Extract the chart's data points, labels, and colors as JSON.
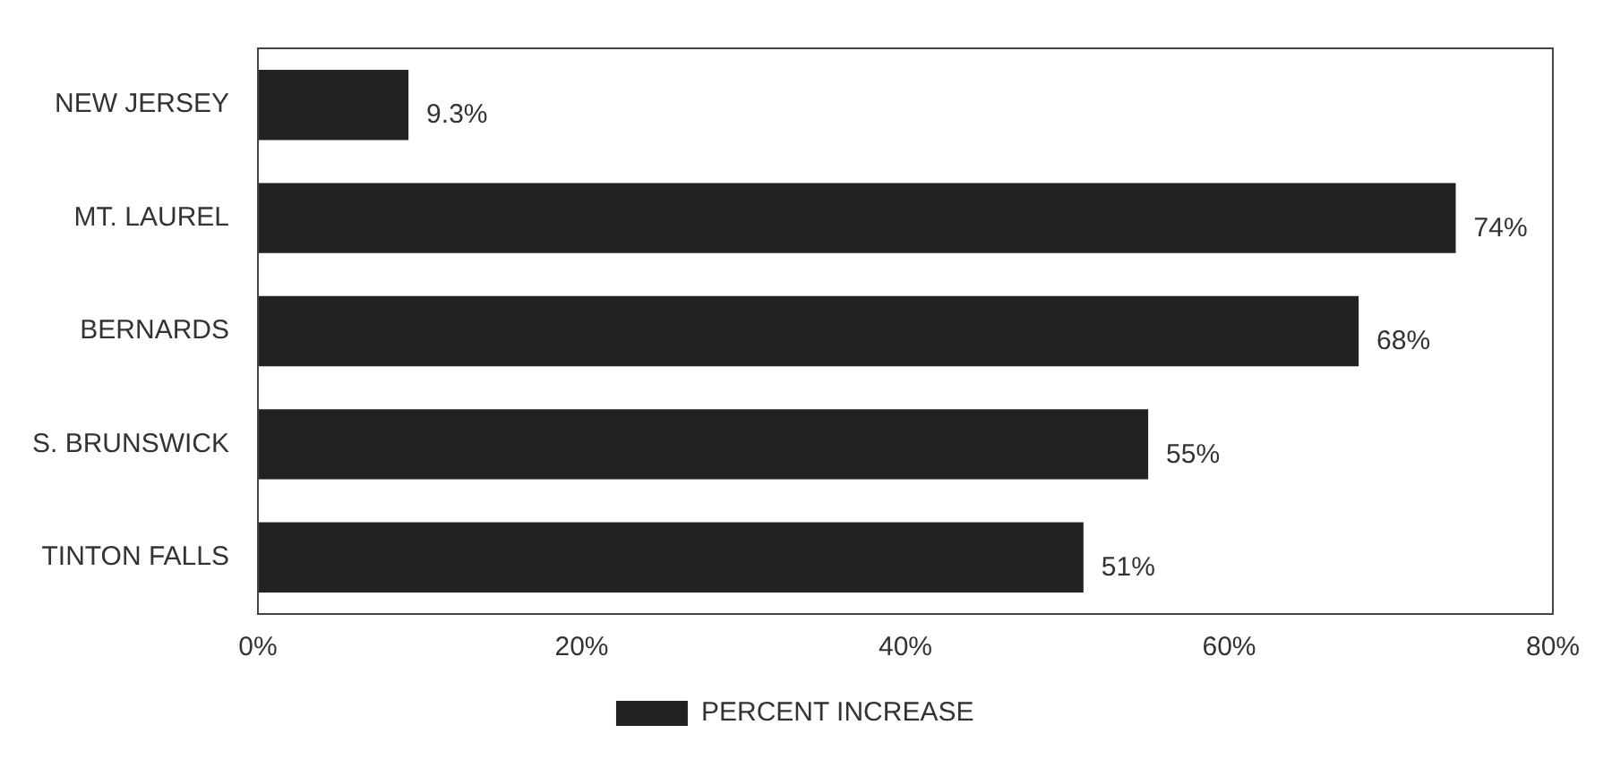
{
  "chart_data": {
    "type": "bar",
    "orientation": "horizontal",
    "categories": [
      "NEW JERSEY",
      "MT. LAUREL",
      "BERNARDS",
      "S. BRUNSWICK",
      "TINTON FALLS"
    ],
    "series": [
      {
        "name": "PERCENT INCREASE",
        "color": "#222222",
        "values": [
          9.3,
          74,
          68,
          55,
          51
        ],
        "value_labels": [
          "9.3%",
          "74%",
          "68%",
          "55%",
          "51%"
        ]
      }
    ],
    "xlim": [
      0,
      80
    ],
    "xticks": [
      {
        "value": 0,
        "label": "0%"
      },
      {
        "value": 20,
        "label": "20%"
      },
      {
        "value": 40,
        "label": "40%"
      },
      {
        "value": 60,
        "label": "60%"
      },
      {
        "value": 80,
        "label": "80%"
      }
    ],
    "grid": false,
    "legend": "bottom"
  }
}
